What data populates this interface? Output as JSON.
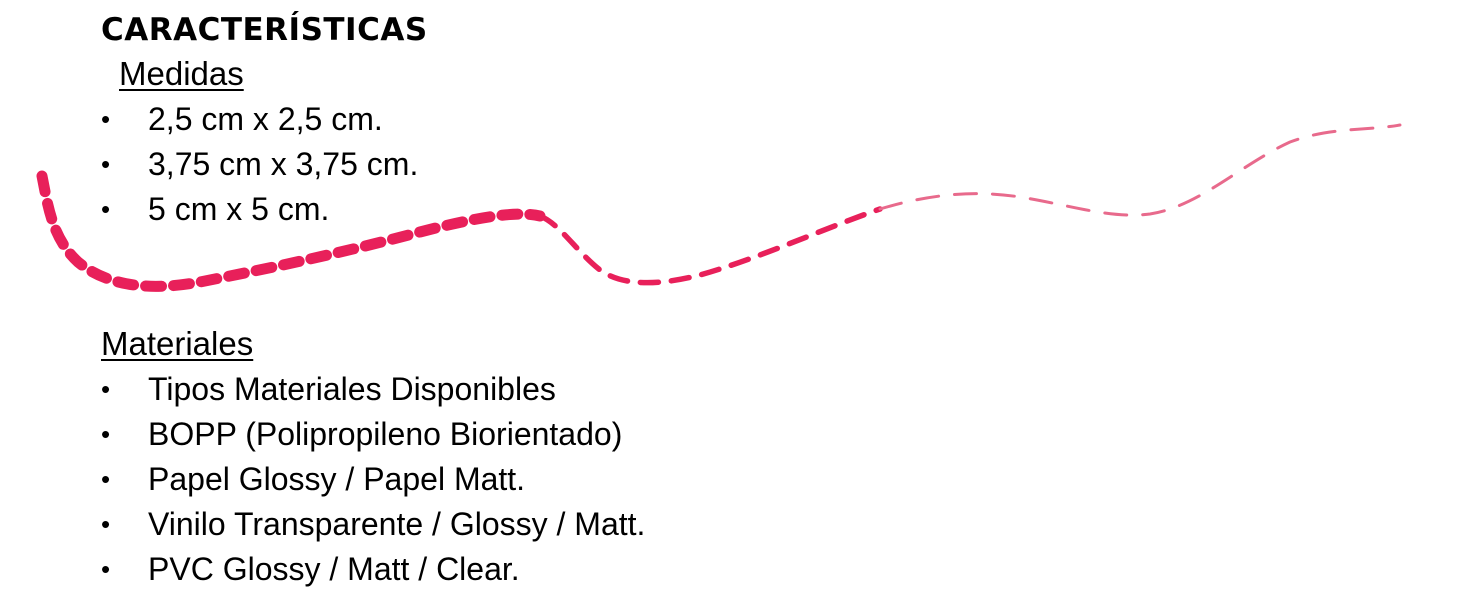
{
  "page": {
    "title": "CARACTERÍSTICAS"
  },
  "medidas": {
    "heading": "Medidas",
    "items": [
      {
        "bullet": "•",
        "text": "2,5 cm x 2,5 cm."
      },
      {
        "bullet": "•",
        "text": "3,75 cm x 3,75 cm."
      },
      {
        "bullet": "•",
        "text": "5 cm x 5 cm."
      }
    ]
  },
  "materiales": {
    "heading": "Materiales",
    "items": [
      {
        "bullet": "•",
        "text": "Tipos Materiales Disponibles"
      },
      {
        "bullet": "•",
        "text": "BOPP (Polipropileno Biorientado)"
      },
      {
        "bullet": "•",
        "text": "Papel Glossy / Papel Matt."
      },
      {
        "bullet": "•",
        "text": "Vinilo Transparente / Glossy / Matt."
      },
      {
        "bullet": "•",
        "text": "PVC Glossy / Matt / Clear."
      }
    ]
  },
  "decoration": {
    "name": "dashed-swoosh-line",
    "color": "#E8205A"
  }
}
